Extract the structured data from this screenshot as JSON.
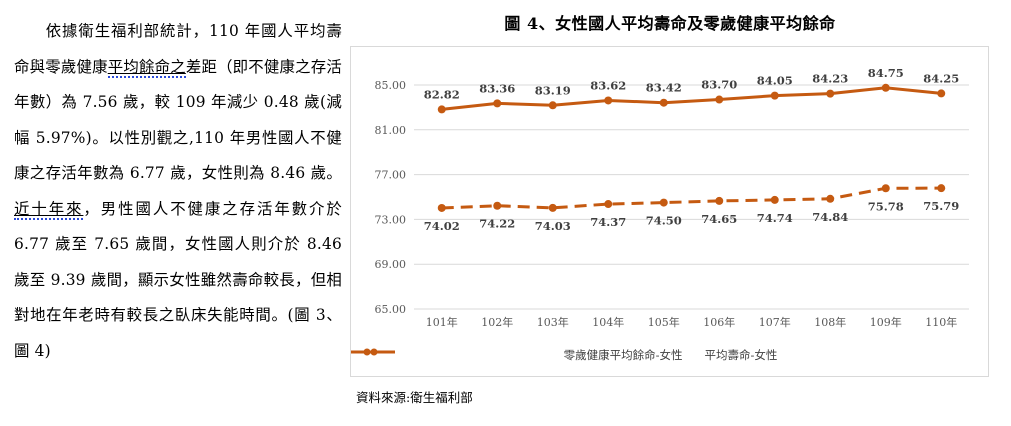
{
  "paragraph": {
    "segments": [
      {
        "text": "依據衛生福利部統計，110 年國人平均壽命與零歲健康",
        "underline": false
      },
      {
        "text": "平均餘命之",
        "underline": true
      },
      {
        "text": "差距（即不健康之存活年數）為 7.56 歲，較 109 年減少 0.48 歲(減幅 5.97%)。以性別觀之,110 年男性國人不健康之存活年數為 6.77 歲，女性則為 8.46 歲。",
        "underline": false
      },
      {
        "text": "近十年來",
        "underline": true
      },
      {
        "text": "，男性國人不健康之存活年數介於6.77 歲至 7.65 歲間，女性國人則介於 8.46 歲至 9.39 歲間，顯示女性雖然壽命較長，但相對地在年老時有較長之臥床失能時間。(圖 3、圖 4)",
        "underline": false
      }
    ]
  },
  "figure": {
    "title": "圖 4、女性國人平均壽命及零歲健康平均餘命",
    "source": "資料來源:衛生福利部"
  },
  "colors": {
    "series": "#C55A11",
    "grid": "#d9d9d9",
    "axis_text": "#595959",
    "label_text": "#404040"
  },
  "chart_data": {
    "type": "line",
    "title": "圖 4、女性國人平均壽命及零歲健康平均餘命",
    "xlabel": "",
    "ylabel": "",
    "categories": [
      "101年",
      "102年",
      "103年",
      "104年",
      "105年",
      "106年",
      "107年",
      "108年",
      "109年",
      "110年"
    ],
    "yticks": [
      "85.00",
      "81.00",
      "77.00",
      "73.00",
      "69.00",
      "65.00"
    ],
    "ylim": [
      65,
      85
    ],
    "grid": true,
    "legend_position": "bottom",
    "series": [
      {
        "name": "零歲健康平均餘命-女性",
        "style": "dashed",
        "values": [
          74.02,
          74.22,
          74.03,
          74.37,
          74.5,
          74.65,
          74.74,
          74.84,
          75.78,
          75.79
        ],
        "labels": [
          "74.02",
          "74.22",
          "74.03",
          "74.37",
          "74.50",
          "74.65",
          "74.74",
          "74.84",
          "75.78",
          "75.79"
        ],
        "label_position": "below"
      },
      {
        "name": "平均壽命-女性",
        "style": "solid",
        "values": [
          82.82,
          83.36,
          83.19,
          83.62,
          83.42,
          83.7,
          84.05,
          84.23,
          84.75,
          84.25
        ],
        "labels": [
          "82.82",
          "83.36",
          "83.19",
          "83.62",
          "83.42",
          "83.70",
          "84.05",
          "84.23",
          "84.75",
          "84.25"
        ],
        "label_position": "above"
      }
    ]
  }
}
